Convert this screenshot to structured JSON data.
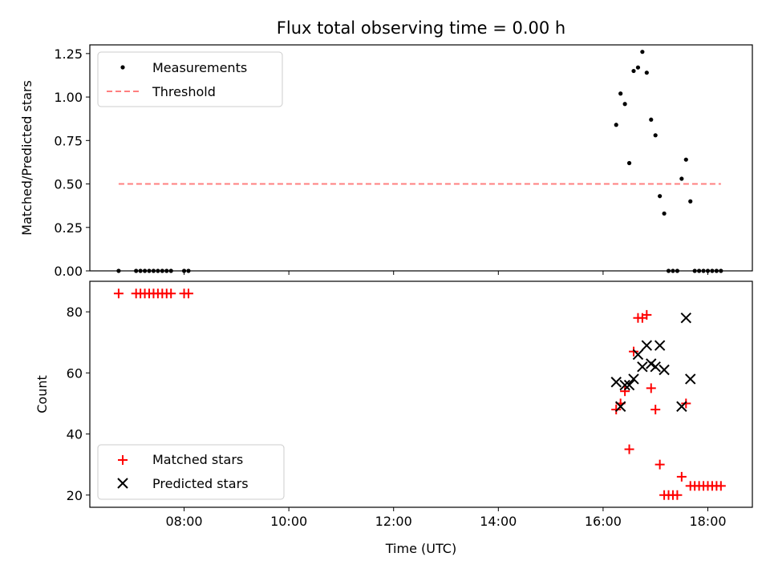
{
  "chart_data": [
    {
      "type": "scatter",
      "title": "Flux total observing time = 0.00 h",
      "xlabel": "",
      "ylabel": "Matched/Predicted stars",
      "ylim": [
        0,
        1.3
      ],
      "yticks": [
        0.0,
        0.25,
        0.5,
        0.75,
        1.0,
        1.25
      ],
      "ytick_labels": [
        "0.00",
        "0.25",
        "0.50",
        "0.75",
        "1.00",
        "1.25"
      ],
      "xlim_hours": [
        6.2,
        18.85
      ],
      "xticks_hours": [
        8,
        10,
        12,
        14,
        16,
        18
      ],
      "legend_position": "upper-left",
      "series": [
        {
          "name": "Measurements",
          "marker": "dot",
          "color": "#000000",
          "x": [
            "06:45",
            "07:05",
            "07:10",
            "07:15",
            "07:20",
            "07:25",
            "07:30",
            "07:35",
            "07:40",
            "07:45",
            "08:00",
            "08:05",
            "16:15",
            "16:20",
            "16:25",
            "16:30",
            "16:35",
            "16:40",
            "16:45",
            "16:50",
            "16:55",
            "17:00",
            "17:05",
            "17:10",
            "17:15",
            "17:20",
            "17:25",
            "17:30",
            "17:35",
            "17:40",
            "17:45",
            "17:50",
            "17:55",
            "18:00",
            "18:05",
            "18:10",
            "18:15"
          ],
          "y": [
            0,
            0,
            0,
            0,
            0,
            0,
            0,
            0,
            0,
            0,
            0,
            0,
            0.84,
            1.02,
            0.96,
            0.62,
            1.15,
            1.17,
            1.26,
            1.14,
            0.87,
            0.78,
            0.43,
            0.33,
            0,
            0,
            0,
            0.53,
            0.64,
            0.4,
            0,
            0,
            0,
            0,
            0,
            0,
            0
          ]
        },
        {
          "name": "Threshold",
          "line_style": "dashed",
          "color": "#ff7f7f",
          "x": [
            "06:45",
            "18:15"
          ],
          "y": [
            0.5,
            0.5
          ]
        }
      ]
    },
    {
      "type": "scatter",
      "title": "",
      "xlabel": "Time (UTC)",
      "ylabel": "Count",
      "ylim": [
        16,
        90
      ],
      "yticks": [
        20,
        40,
        60,
        80
      ],
      "ytick_labels": [
        "20",
        "40",
        "60",
        "80"
      ],
      "xlim_hours": [
        6.2,
        18.85
      ],
      "xticks_hours": [
        8,
        10,
        12,
        14,
        16,
        18
      ],
      "xtick_labels": [
        "08:00",
        "10:00",
        "12:00",
        "14:00",
        "16:00",
        "18:00"
      ],
      "legend_position": "lower-left",
      "series": [
        {
          "name": "Matched stars",
          "marker": "plus",
          "color": "#ff0000",
          "x": [
            "06:45",
            "07:05",
            "07:10",
            "07:15",
            "07:20",
            "07:25",
            "07:30",
            "07:35",
            "07:40",
            "07:45",
            "08:00",
            "08:05",
            "16:15",
            "16:20",
            "16:25",
            "16:30",
            "16:35",
            "16:40",
            "16:45",
            "16:50",
            "16:55",
            "17:00",
            "17:05",
            "17:10",
            "17:15",
            "17:20",
            "17:25",
            "17:30",
            "17:35",
            "17:40",
            "17:45",
            "17:50",
            "17:55",
            "18:00",
            "18:05",
            "18:10",
            "18:15"
          ],
          "y": [
            86,
            86,
            86,
            86,
            86,
            86,
            86,
            86,
            86,
            86,
            86,
            86,
            48,
            50,
            54,
            35,
            67,
            78,
            78,
            79,
            55,
            48,
            30,
            20,
            20,
            20,
            20,
            26,
            50,
            23,
            23,
            23,
            23,
            23,
            23,
            23,
            23
          ]
        },
        {
          "name": "Predicted stars",
          "marker": "x",
          "color": "#000000",
          "x": [
            "16:15",
            "16:20",
            "16:25",
            "16:30",
            "16:35",
            "16:40",
            "16:45",
            "16:50",
            "16:55",
            "17:00",
            "17:05",
            "17:10",
            "17:30",
            "17:35",
            "17:40"
          ],
          "y": [
            57,
            49,
            56,
            56,
            58,
            66,
            62,
            69,
            63,
            62,
            69,
            61,
            49,
            78,
            58
          ]
        }
      ]
    }
  ]
}
